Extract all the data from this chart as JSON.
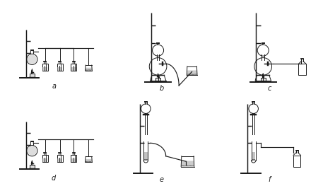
{
  "labels": [
    "a",
    "b",
    "c",
    "d",
    "e",
    "f"
  ],
  "bg_color": "#ffffff",
  "line_color": "#1a1a1a",
  "lw": 0.7,
  "fc_gray": "#aaaaaa",
  "fc_light": "#e0e0e0",
  "fc_dark": "#777777"
}
